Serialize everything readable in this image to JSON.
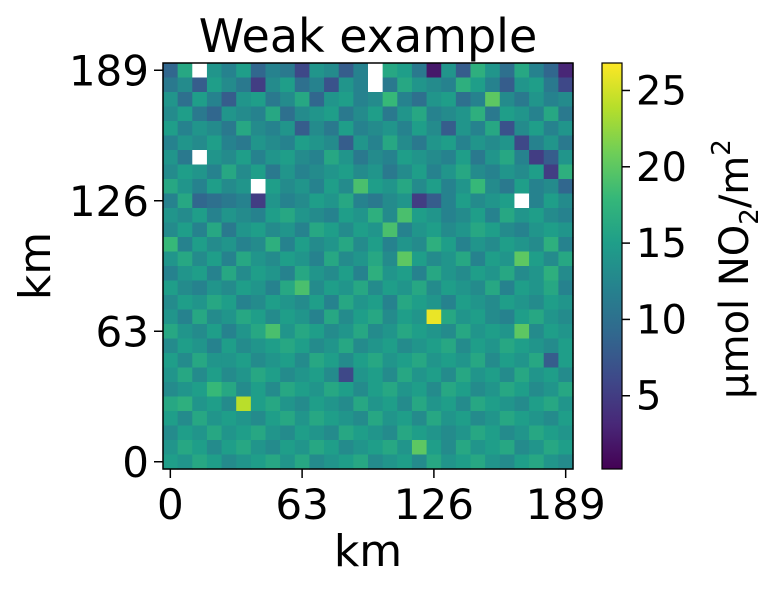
{
  "chart_data": {
    "type": "heatmap",
    "title": "Weak example",
    "xlabel": "km",
    "ylabel": "km",
    "x_ticks": [
      0,
      63,
      126,
      189
    ],
    "y_ticks": [
      0,
      63,
      126,
      189
    ],
    "xlim": [
      0,
      189
    ],
    "ylim": [
      0,
      189
    ],
    "grid_size": 28,
    "cell_size_km": 6.75,
    "colorbar": {
      "label_main": "μmol NO",
      "label_sub": "2",
      "label_mid": "/m",
      "label_sup": "2",
      "ticks": [
        5,
        10,
        15,
        20,
        25
      ],
      "range": [
        0.2,
        26.8
      ],
      "colormap": "viridis"
    },
    "colormap_stops": [
      "#440154",
      "#482878",
      "#3e4989",
      "#31688e",
      "#26828e",
      "#1f9e89",
      "#35b779",
      "#6ece58",
      "#b5de2b",
      "#fde725"
    ],
    "missing_color": "#ffffff",
    "background_level": 13,
    "values_note": "NO2 column density, 28x28 grid, rows listed top (y=189) to bottom (y=0); null = missing",
    "values": [
      [
        9,
        16,
        null,
        14,
        12,
        15,
        9,
        12,
        11,
        6,
        14,
        13,
        8,
        12,
        null,
        16,
        15,
        11,
        2,
        14,
        8,
        17,
        14,
        10,
        16,
        12,
        9,
        3
      ],
      [
        11,
        13,
        8,
        15,
        13,
        11,
        5,
        13,
        15,
        10,
        12,
        7,
        14,
        12,
        null,
        11,
        16,
        14,
        13,
        12,
        17,
        15,
        12,
        8,
        14,
        15,
        11,
        6
      ],
      [
        14,
        10,
        15,
        12,
        8,
        14,
        15,
        11,
        13,
        16,
        9,
        14,
        15,
        12,
        13,
        18,
        12,
        10,
        14,
        15,
        10,
        12,
        20,
        13,
        11,
        14,
        12,
        13
      ],
      [
        13,
        15,
        11,
        9,
        14,
        13,
        12,
        16,
        10,
        13,
        14,
        15,
        11,
        13,
        15,
        11,
        14,
        16,
        12,
        13,
        14,
        17,
        11,
        15,
        14,
        12,
        16,
        11
      ],
      [
        15,
        12,
        14,
        13,
        11,
        16,
        13,
        12,
        14,
        8,
        13,
        11,
        15,
        12,
        13,
        14,
        12,
        15,
        13,
        8,
        14,
        12,
        16,
        7,
        13,
        15,
        12,
        14
      ],
      [
        12,
        14,
        13,
        15,
        12,
        11,
        14,
        13,
        12,
        15,
        14,
        13,
        8,
        14,
        12,
        16,
        13,
        11,
        14,
        15,
        12,
        14,
        13,
        14,
        6,
        12,
        14,
        11
      ],
      [
        14,
        11,
        null,
        14,
        13,
        15,
        12,
        14,
        15,
        13,
        12,
        16,
        14,
        11,
        13,
        12,
        15,
        14,
        13,
        12,
        15,
        11,
        14,
        16,
        12,
        5,
        8,
        14
      ],
      [
        13,
        15,
        14,
        12,
        16,
        13,
        15,
        11,
        14,
        12,
        13,
        14,
        15,
        13,
        14,
        11,
        13,
        15,
        12,
        14,
        16,
        13,
        12,
        14,
        13,
        15,
        5,
        17
      ],
      [
        16,
        14,
        12,
        15,
        13,
        14,
        null,
        15,
        13,
        14,
        12,
        15,
        13,
        19,
        15,
        14,
        16,
        13,
        15,
        12,
        14,
        18,
        13,
        11,
        15,
        12,
        13,
        9
      ],
      [
        12,
        16,
        9,
        10,
        11,
        12,
        5,
        14,
        12,
        13,
        15,
        14,
        16,
        12,
        11,
        13,
        14,
        5,
        8,
        12,
        15,
        13,
        14,
        15,
        null,
        12,
        15,
        13
      ],
      [
        14,
        13,
        15,
        12,
        14,
        13,
        12,
        15,
        16,
        14,
        13,
        12,
        15,
        14,
        17,
        13,
        19,
        15,
        14,
        12,
        13,
        15,
        12,
        16,
        14,
        15,
        13,
        12
      ],
      [
        13,
        15,
        12,
        16,
        11,
        14,
        15,
        13,
        14,
        12,
        16,
        15,
        13,
        15,
        14,
        19,
        12,
        14,
        15,
        13,
        14,
        16,
        15,
        13,
        12,
        14,
        15,
        14
      ],
      [
        18,
        12,
        15,
        13,
        14,
        12,
        13,
        17,
        12,
        15,
        13,
        14,
        16,
        13,
        15,
        12,
        14,
        13,
        17,
        15,
        12,
        14,
        13,
        15,
        14,
        13,
        17,
        12
      ],
      [
        14,
        16,
        13,
        15,
        12,
        16,
        14,
        13,
        15,
        14,
        12,
        16,
        13,
        14,
        16,
        13,
        20,
        15,
        13,
        14,
        16,
        12,
        15,
        14,
        20,
        15,
        13,
        16
      ],
      [
        12,
        14,
        15,
        12,
        16,
        13,
        15,
        14,
        12,
        16,
        14,
        13,
        15,
        12,
        17,
        14,
        15,
        12,
        16,
        14,
        13,
        15,
        14,
        16,
        13,
        14,
        17,
        13
      ],
      [
        15,
        13,
        12,
        14,
        13,
        15,
        14,
        12,
        16,
        19,
        13,
        15,
        14,
        16,
        13,
        15,
        14,
        16,
        13,
        15,
        14,
        13,
        16,
        12,
        15,
        14,
        16,
        12
      ],
      [
        13,
        15,
        14,
        16,
        15,
        12,
        13,
        15,
        14,
        13,
        15,
        12,
        16,
        14,
        15,
        12,
        16,
        15,
        14,
        12,
        15,
        14,
        13,
        15,
        14,
        13,
        15,
        14
      ],
      [
        14,
        12,
        16,
        13,
        14,
        16,
        15,
        13,
        15,
        14,
        12,
        16,
        13,
        15,
        16,
        13,
        15,
        14,
        26,
        16,
        14,
        15,
        13,
        12,
        15,
        16,
        14,
        13
      ],
      [
        16,
        14,
        13,
        15,
        12,
        14,
        16,
        19,
        14,
        16,
        15,
        13,
        14,
        16,
        13,
        14,
        16,
        15,
        14,
        13,
        16,
        14,
        15,
        14,
        20,
        13,
        15,
        14
      ],
      [
        13,
        15,
        14,
        12,
        15,
        13,
        14,
        15,
        16,
        15,
        13,
        14,
        16,
        13,
        14,
        15,
        13,
        14,
        15,
        16,
        13,
        15,
        14,
        16,
        15,
        14,
        13,
        15
      ],
      [
        15,
        13,
        16,
        14,
        14,
        15,
        13,
        14,
        15,
        13,
        16,
        15,
        13,
        15,
        16,
        14,
        15,
        16,
        14,
        15,
        14,
        16,
        13,
        15,
        14,
        16,
        8,
        15
      ],
      [
        14,
        16,
        13,
        15,
        13,
        14,
        16,
        15,
        13,
        14,
        15,
        13,
        6,
        14,
        15,
        13,
        16,
        14,
        15,
        13,
        16,
        14,
        15,
        13,
        16,
        14,
        15,
        13
      ],
      [
        13,
        14,
        15,
        18,
        16,
        13,
        15,
        13,
        16,
        15,
        14,
        16,
        15,
        13,
        15,
        16,
        14,
        15,
        13,
        16,
        15,
        13,
        14,
        16,
        15,
        13,
        14,
        16
      ],
      [
        16,
        17,
        14,
        15,
        13,
        24,
        15,
        16,
        14,
        13,
        15,
        14,
        13,
        16,
        14,
        15,
        13,
        16,
        14,
        15,
        13,
        16,
        15,
        14,
        13,
        15,
        16,
        14
      ],
      [
        15,
        13,
        16,
        14,
        15,
        14,
        13,
        15,
        16,
        14,
        16,
        15,
        14,
        13,
        16,
        14,
        15,
        13,
        16,
        14,
        15,
        13,
        14,
        16,
        15,
        14,
        13,
        15
      ],
      [
        13,
        15,
        14,
        16,
        14,
        15,
        16,
        14,
        13,
        15,
        14,
        13,
        16,
        15,
        14,
        13,
        16,
        15,
        14,
        13,
        14,
        16,
        15,
        13,
        14,
        16,
        15,
        14
      ],
      [
        14,
        16,
        15,
        13,
        15,
        16,
        14,
        13,
        15,
        14,
        16,
        15,
        13,
        14,
        15,
        16,
        14,
        20,
        15,
        13,
        16,
        14,
        15,
        16,
        13,
        14,
        16,
        15
      ],
      [
        15,
        14,
        16,
        15,
        13,
        14,
        15,
        16,
        14,
        16,
        13,
        14,
        15,
        16,
        13,
        14,
        15,
        13,
        16,
        14,
        15,
        16,
        14,
        13,
        15,
        16,
        14,
        13
      ]
    ]
  }
}
